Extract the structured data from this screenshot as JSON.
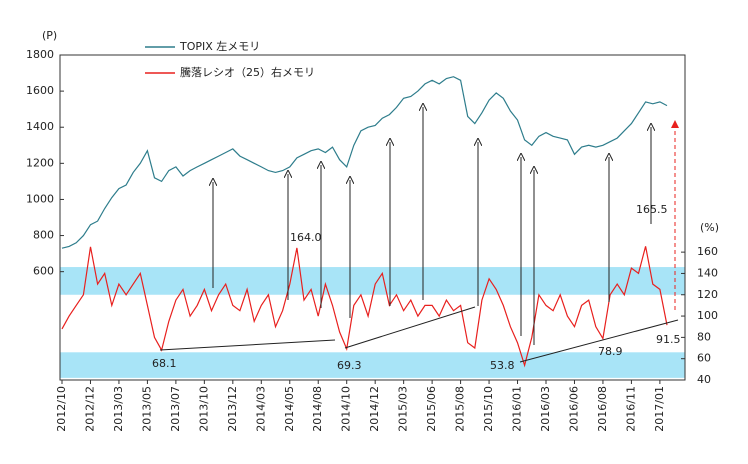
{
  "chart_data": {
    "type": "line",
    "y_unit": "(P)",
    "y2_unit": "(%)",
    "categories": [
      "2012/10",
      null,
      null,
      null,
      "2012/12",
      null,
      null,
      null,
      "2013/03",
      null,
      null,
      null,
      "2013/05",
      null,
      null,
      null,
      "2013/07",
      null,
      null,
      null,
      "2013/10",
      null,
      null,
      null,
      "2013/12",
      null,
      null,
      null,
      "2014/03",
      null,
      null,
      null,
      "2014/05",
      null,
      null,
      null,
      "2014/08",
      null,
      null,
      null,
      "2014/10",
      null,
      null,
      null,
      "2014/12",
      null,
      null,
      null,
      "2015/03",
      null,
      null,
      null,
      "2015/06",
      null,
      null,
      null,
      "2015/08",
      null,
      null,
      null,
      "2015/10",
      null,
      null,
      null,
      "2016/01",
      null,
      null,
      null,
      "2016/03",
      null,
      null,
      null,
      "2016/06",
      null,
      null,
      null,
      "2016/08",
      null,
      null,
      null,
      "2016/11",
      null,
      null,
      null,
      "2017/01",
      null
    ],
    "series": [
      {
        "name": "TOPIX  左メモリ",
        "color": "#2e7d8c",
        "values": [
          730,
          740,
          760,
          800,
          860,
          880,
          950,
          1010,
          1060,
          1080,
          1150,
          1200,
          1270,
          1120,
          1100,
          1160,
          1180,
          1130,
          1160,
          1180,
          1200,
          1220,
          1240,
          1260,
          1280,
          1240,
          1220,
          1200,
          1180,
          1160,
          1150,
          1160,
          1180,
          1230,
          1250,
          1270,
          1280,
          1260,
          1290,
          1220,
          1180,
          1300,
          1380,
          1400,
          1410,
          1450,
          1470,
          1510,
          1560,
          1570,
          1600,
          1640,
          1660,
          1640,
          1670,
          1680,
          1660,
          1460,
          1420,
          1480,
          1550,
          1590,
          1560,
          1490,
          1440,
          1330,
          1300,
          1350,
          1370,
          1350,
          1340,
          1330,
          1250,
          1290,
          1300,
          1290,
          1300,
          1320,
          1340,
          1380,
          1420,
          1480,
          1540,
          1530,
          1540,
          1520
        ]
      },
      {
        "name": "騰落レシオ（25）右メモリ",
        "color": "#e8201e",
        "axis": "y2",
        "values": [
          88,
          100,
          110,
          120,
          165,
          130,
          140,
          110,
          130,
          120,
          130,
          140,
          110,
          80,
          68.1,
          95,
          115,
          125,
          100,
          110,
          125,
          105,
          120,
          130,
          110,
          105,
          125,
          95,
          110,
          120,
          90,
          105,
          130,
          164.0,
          115,
          125,
          100,
          130,
          110,
          85,
          69.3,
          110,
          120,
          100,
          130,
          140,
          110,
          120,
          105,
          115,
          100,
          110,
          110,
          100,
          115,
          105,
          110,
          75,
          70,
          115,
          135,
          125,
          110,
          90,
          75,
          53.8,
          80,
          120,
          110,
          105,
          120,
          100,
          90,
          110,
          115,
          90,
          78.9,
          120,
          130,
          120,
          145,
          140,
          165.5,
          130,
          125,
          91.5
        ]
      }
    ],
    "annotations": [
      "164.0",
      "68.1",
      "69.3",
      "53.8",
      "78.9",
      "165.5",
      "91.5"
    ],
    "bands": [
      [
        120,
        146
      ],
      [
        42,
        66
      ]
    ],
    "band_color": "#a8e4f7",
    "ylim": [
      0,
      1800
    ],
    "yticks": [
      600,
      800,
      1000,
      1200,
      1400,
      1600,
      1800
    ],
    "y2lim": [
      40,
      345
    ],
    "y2ticks": [
      40,
      60,
      80,
      100,
      120,
      140,
      160
    ]
  }
}
